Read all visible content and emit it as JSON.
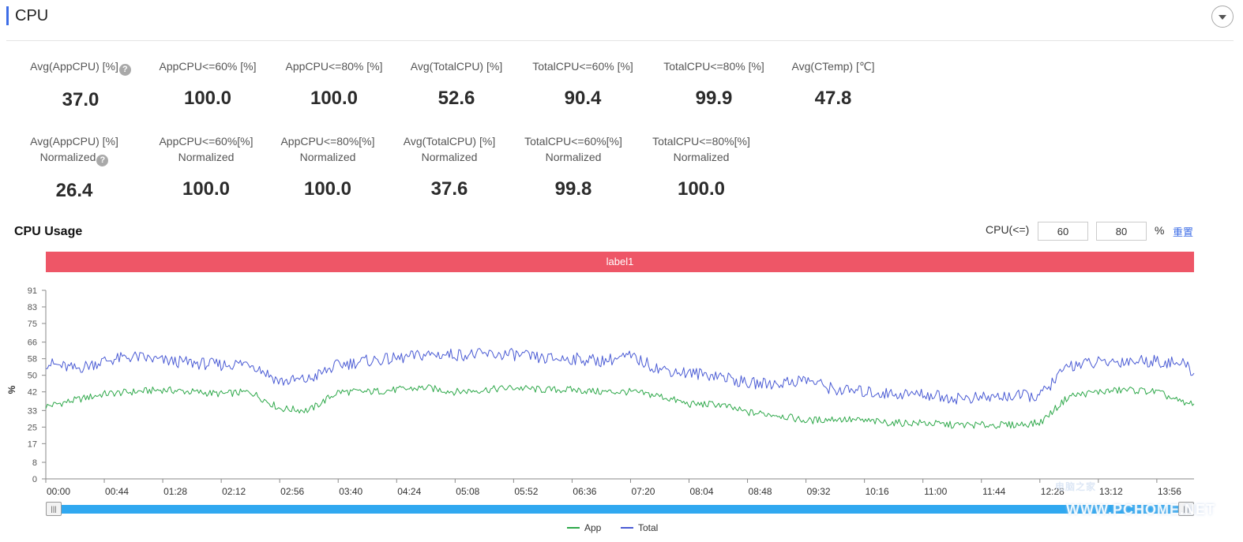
{
  "header": {
    "title": "CPU"
  },
  "metrics_row1": [
    {
      "label": "Avg(AppCPU) [%]",
      "value": "37.0",
      "help": true
    },
    {
      "label": "AppCPU<=60% [%]",
      "value": "100.0"
    },
    {
      "label": "AppCPU<=80% [%]",
      "value": "100.0"
    },
    {
      "label": "Avg(TotalCPU) [%]",
      "value": "52.6"
    },
    {
      "label": "TotalCPU<=60% [%]",
      "value": "90.4"
    },
    {
      "label": "TotalCPU<=80% [%]",
      "value": "99.9"
    },
    {
      "label": "Avg(CTemp) [℃]",
      "value": "47.8"
    }
  ],
  "metrics_row2": [
    {
      "label1": "Avg(AppCPU) [%]",
      "label2": "Normalized",
      "value": "26.4",
      "help": true
    },
    {
      "label1": "AppCPU<=60%[%]",
      "label2": "Normalized",
      "value": "100.0"
    },
    {
      "label1": "AppCPU<=80%[%]",
      "label2": "Normalized",
      "value": "100.0"
    },
    {
      "label1": "Avg(TotalCPU) [%]",
      "label2": "Normalized",
      "value": "37.6"
    },
    {
      "label1": "TotalCPU<=60%[%]",
      "label2": "Normalized",
      "value": "99.8"
    },
    {
      "label1": "TotalCPU<=80%[%]",
      "label2": "Normalized",
      "value": "100.0"
    }
  ],
  "usage": {
    "title": "CPU Usage",
    "cpu_label": "CPU(<=)",
    "threshold1": "60",
    "threshold2": "80",
    "unit": "%",
    "reset_label": "重置",
    "band_label": "label1"
  },
  "watermark": {
    "line1": "电脑之家",
    "line2": "WWW.PCHOME.NET"
  },
  "chart_data": {
    "type": "line",
    "ylabel": "%",
    "yticks": [
      "0",
      "8",
      "17",
      "25",
      "33",
      "42",
      "50",
      "58",
      "66",
      "75",
      "83",
      "91"
    ],
    "ylim": [
      0,
      91
    ],
    "xlim": [
      "00:00",
      "14:24"
    ],
    "xticks": [
      "00:00",
      "00:44",
      "01:28",
      "02:12",
      "02:56",
      "03:40",
      "04:24",
      "05:08",
      "05:52",
      "06:36",
      "07:20",
      "08:04",
      "08:48",
      "09:32",
      "10:16",
      "11:00",
      "11:44",
      "12:28",
      "13:12",
      "13:56"
    ],
    "legend_position": "bottom-center",
    "x": [
      "00:00",
      "00:22",
      "00:44",
      "01:06",
      "01:28",
      "01:50",
      "02:12",
      "02:34",
      "02:56",
      "03:18",
      "03:40",
      "04:02",
      "04:24",
      "04:46",
      "05:08",
      "05:30",
      "05:52",
      "06:14",
      "06:36",
      "06:58",
      "07:20",
      "07:42",
      "08:04",
      "08:26",
      "08:48",
      "09:10",
      "09:32",
      "09:54",
      "10:16",
      "10:38",
      "11:00",
      "11:22",
      "11:44",
      "12:06",
      "12:28",
      "12:50",
      "13:12",
      "13:34",
      "13:56",
      "14:18",
      "14:24"
    ],
    "series": [
      {
        "name": "App",
        "color": "#2ea84a",
        "values": [
          35,
          38,
          41,
          42,
          43,
          42,
          41,
          42,
          34,
          33,
          42,
          42,
          43,
          44,
          42,
          43,
          44,
          43,
          43,
          42,
          42,
          40,
          36,
          36,
          32,
          31,
          28,
          29,
          28,
          27,
          27,
          26,
          26,
          26,
          27,
          40,
          42,
          43,
          42,
          36,
          37
        ]
      },
      {
        "name": "Total",
        "color": "#4a5bd4",
        "values": [
          56,
          53,
          57,
          59,
          57,
          56,
          55,
          56,
          47,
          48,
          55,
          57,
          58,
          60,
          60,
          60,
          60,
          58,
          58,
          57,
          59,
          53,
          51,
          50,
          46,
          46,
          48,
          43,
          42,
          41,
          41,
          39,
          39,
          40,
          40,
          55,
          56,
          57,
          57,
          55,
          51
        ]
      }
    ]
  }
}
